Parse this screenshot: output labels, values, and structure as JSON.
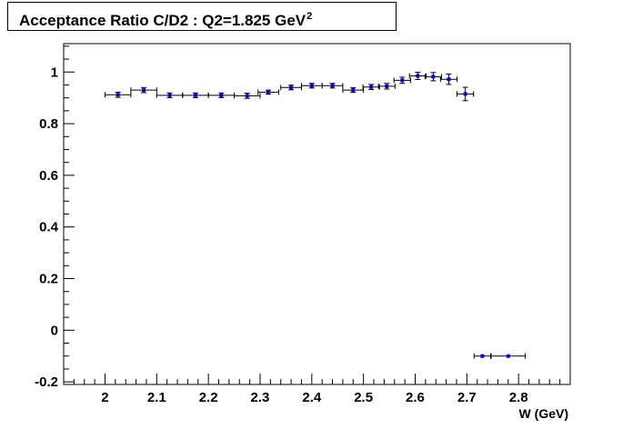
{
  "chart_data": {
    "type": "scatter",
    "title": "Acceptance Ratio C/D2 : Q2=1.825 GeV",
    "title_sup": "2",
    "xlabel": "W (GeV)",
    "ylabel": "",
    "xlim": [
      1.92,
      2.9
    ],
    "ylim": [
      -0.21,
      1.11
    ],
    "x_ticks": [
      2,
      2.1,
      2.2,
      2.3,
      2.4,
      2.5,
      2.6,
      2.7,
      2.8
    ],
    "x_tick_labels": [
      "2",
      "2.1",
      "2.2",
      "2.3",
      "2.4",
      "2.5",
      "2.6",
      "2.7",
      "2.8"
    ],
    "y_ticks": [
      -0.2,
      0,
      0.2,
      0.4,
      0.6,
      0.8,
      1
    ],
    "y_tick_labels": [
      "-0.2",
      "0",
      "0.2",
      "0.4",
      "0.6",
      "0.8",
      "1"
    ],
    "grid": false,
    "marker_color": "#0000cc",
    "errorbar_color": "#000000",
    "points": [
      {
        "x": 2.025,
        "y": 0.912,
        "xerr": 0.025,
        "yerr": 0.01
      },
      {
        "x": 2.075,
        "y": 0.93,
        "xerr": 0.025,
        "yerr": 0.01
      },
      {
        "x": 2.125,
        "y": 0.91,
        "xerr": 0.025,
        "yerr": 0.009
      },
      {
        "x": 2.175,
        "y": 0.91,
        "xerr": 0.025,
        "yerr": 0.009
      },
      {
        "x": 2.225,
        "y": 0.91,
        "xerr": 0.025,
        "yerr": 0.009
      },
      {
        "x": 2.275,
        "y": 0.908,
        "xerr": 0.025,
        "yerr": 0.01
      },
      {
        "x": 2.316,
        "y": 0.922,
        "xerr": 0.02,
        "yerr": 0.008
      },
      {
        "x": 2.36,
        "y": 0.94,
        "xerr": 0.02,
        "yerr": 0.009
      },
      {
        "x": 2.4,
        "y": 0.947,
        "xerr": 0.02,
        "yerr": 0.009
      },
      {
        "x": 2.44,
        "y": 0.947,
        "xerr": 0.02,
        "yerr": 0.009
      },
      {
        "x": 2.48,
        "y": 0.93,
        "xerr": 0.02,
        "yerr": 0.009
      },
      {
        "x": 2.515,
        "y": 0.942,
        "xerr": 0.016,
        "yerr": 0.01
      },
      {
        "x": 2.545,
        "y": 0.945,
        "xerr": 0.016,
        "yerr": 0.011
      },
      {
        "x": 2.575,
        "y": 0.968,
        "xerr": 0.016,
        "yerr": 0.012
      },
      {
        "x": 2.605,
        "y": 0.985,
        "xerr": 0.016,
        "yerr": 0.014
      },
      {
        "x": 2.635,
        "y": 0.982,
        "xerr": 0.016,
        "yerr": 0.016
      },
      {
        "x": 2.665,
        "y": 0.972,
        "xerr": 0.016,
        "yerr": 0.02
      },
      {
        "x": 2.697,
        "y": 0.915,
        "xerr": 0.016,
        "yerr": 0.026
      },
      {
        "x": 2.73,
        "y": -0.1,
        "xerr": 0.016,
        "yerr": 0.0
      },
      {
        "x": 2.78,
        "y": -0.1,
        "xerr": 0.033,
        "yerr": 0.0
      }
    ]
  }
}
